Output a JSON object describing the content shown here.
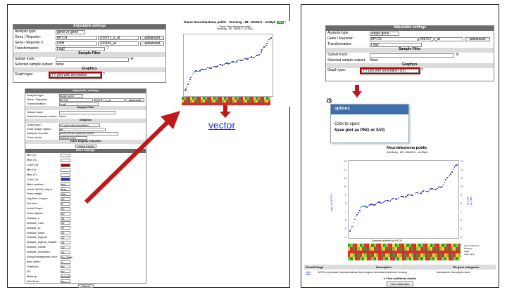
{
  "left_settings": {
    "title": "Adjustable settings",
    "analysis_type_label": "Analysis type:",
    "analysis_type_value": "gene vs gene",
    "gene1_label": "Gene / Reporter:",
    "gene1_name": "MYCN",
    "gene1_reporter": "209757_s_at",
    "gene2_label": "Gene / Reporter 2:",
    "gene2_name": "DBH",
    "gene2_reporter": "206450_at",
    "advanced_label": "advanced",
    "transformation_label": "Transformation:",
    "transformation_value": "Log2",
    "sample_filter_title": "Sample Filter",
    "subset_track_label": "Subset track:",
    "selected_subset_label": "Selected sample subset:",
    "selected_subset_value": "None",
    "graphics_title": "Graphics",
    "graph_type_label": "Graph type:",
    "graph_type_value": "YY plot with annotation"
  },
  "top_chart": {
    "title": "Tumor Neuroblastoma public - Versteeg - 88 - MAS5.0 - u133p2",
    "subtitle": "Tumor Neuroblastoma public",
    "subtitle2": "Versteeg - 88 - MAS5.0 - u133p2",
    "badge": "OK"
  },
  "vector_link": "vector",
  "mid_settings": {
    "title": "Adjustable settings",
    "analysis_type_label": "Analysis type:",
    "analysis_type_value": "single gene",
    "gene_label": "Gene / Reporter:",
    "gene_name": "MYCN",
    "gene_reporter": "209757_s_at",
    "advanced_label": "advanced",
    "transformation_label": "Transformation:",
    "transformation_value": "Log2",
    "sample_filter_title": "Sample Filter",
    "subset_track_label": "Subset track:",
    "selected_subset_label": "Selected sample subset:",
    "selected_subset_value": "None",
    "graphics_title": "Graphics",
    "graph_type_label": "Graph type:",
    "graph_type_value": "YY plot with annotation",
    "extra_option_label": "Extra Graph Option:",
    "extra_option_value": "off",
    "samples_mark_label": "Samples to mark:",
    "samples_mark_value": "AccID2 R4444 epicenter AccID2",
    "color_mode_label": "Color mode:",
    "color_mode_value": "Default Color",
    "track_display_title": "Track Display Selection",
    "select_tracks_label": "Select tracks",
    "more_settings_title": "More Settings",
    "fields": [
      {
        "label": "Min (X):",
        "value": ""
      },
      {
        "label": "Max (X):",
        "value": ""
      },
      {
        "label": "Color (X):",
        "value": ""
      },
      {
        "label": "Min (Y):",
        "value": ""
      },
      {
        "label": "Max (Y):",
        "value": ""
      },
      {
        "label": "Color (Y):",
        "value": ""
      },
      {
        "label": "Mark method:",
        "value": "dot"
      },
      {
        "label": "Vector (SVG) output:",
        "value": "true"
      },
      {
        "label": "Draw height:",
        "value": "400"
      },
      {
        "label": "GapSize Groups:",
        "value": "10"
      },
      {
        "label": "Dot size:",
        "value": "2"
      },
      {
        "label": "Avoid Graph:",
        "value": "no"
      },
      {
        "label": "Draw legend:",
        "value": "no"
      },
      {
        "label": "fontsize_x:",
        "value": "14"
      },
      {
        "label": "fontsize_ruler:",
        "value": "12"
      },
      {
        "label": "fontsize_t1:",
        "value": "17"
      },
      {
        "label": "fontsize_track:",
        "value": "12"
      },
      {
        "label": "fontsize_legend:",
        "value": "12"
      },
      {
        "label": "fontsize_legend_header:",
        "value": "14"
      },
      {
        "label": "fontsize_tracks:",
        "value": "10"
      },
      {
        "label": "fontsize_footnotes:",
        "value": "10"
      },
      {
        "label": "Group background color:",
        "value": "No_Back"
      },
      {
        "label": "axis_width:",
        "value": "1"
      },
      {
        "label": "Shadows:",
        "value": "no"
      },
      {
        "label": "3D:",
        "value": "no"
      },
      {
        "label": "Makeup:",
        "value": "default"
      },
      {
        "label": "Grid lines:",
        "value": "on"
      }
    ],
    "submit_label": "Submit"
  },
  "right_settings": {
    "title": "Adjustable settings",
    "analysis_type_label": "Analysis type:",
    "analysis_type_value": "single gene",
    "gene_label": "Gene / Reporter:",
    "gene_name": "MYCN",
    "gene_reporter": "209757_s_at",
    "advanced_label": "advanced",
    "transformation_label": "Transformation:",
    "transformation_value": "Log2",
    "sample_filter_title": "Sample Filter",
    "subset_track_label": "Subset track:",
    "selected_subset_label": "Selected sample subset:",
    "selected_subset_value": "None",
    "graphics_title": "Graphics",
    "graph_type_label": "Graph type:",
    "graph_type_value": "YY plot with annotation (v2)"
  },
  "options_popup": {
    "title": "options",
    "line1": "Click to open:",
    "line2": "Save plot as PNG or SVG"
  },
  "right_chart": {
    "title": "Neuroblastoma public",
    "subtitle": "Versteeg - 88 - MAS5.0 - u133p2",
    "ylabel_left": "log2 of MYCN",
    "ylabel_right": "log2 of MYCN",
    "xlabel": "Samples ordered by MYCN",
    "yticks": [
      "13",
      "12",
      "11",
      "10",
      "9",
      "8",
      "7",
      "6",
      "5",
      "4"
    ],
    "legend": [
      "age at diagnosis",
      "histology",
      "stage",
      "mycn_amp"
    ]
  },
  "right_table": {
    "headers": [
      "GeneID Hugo",
      "Description",
      "R2 gene categories"
    ],
    "row": [
      "4613",
      "MYCN v-myc avian myelocytomatosis viral oncogene neuroblastoma derived homolog",
      "development, transcription factor"
    ],
    "view_details": "View additional details",
    "view_table": "View data table"
  },
  "colors": {
    "highlight": "#b40000",
    "arrow": "#c0161c",
    "link": "#1f2fd6",
    "dots": "#2b35c0"
  }
}
